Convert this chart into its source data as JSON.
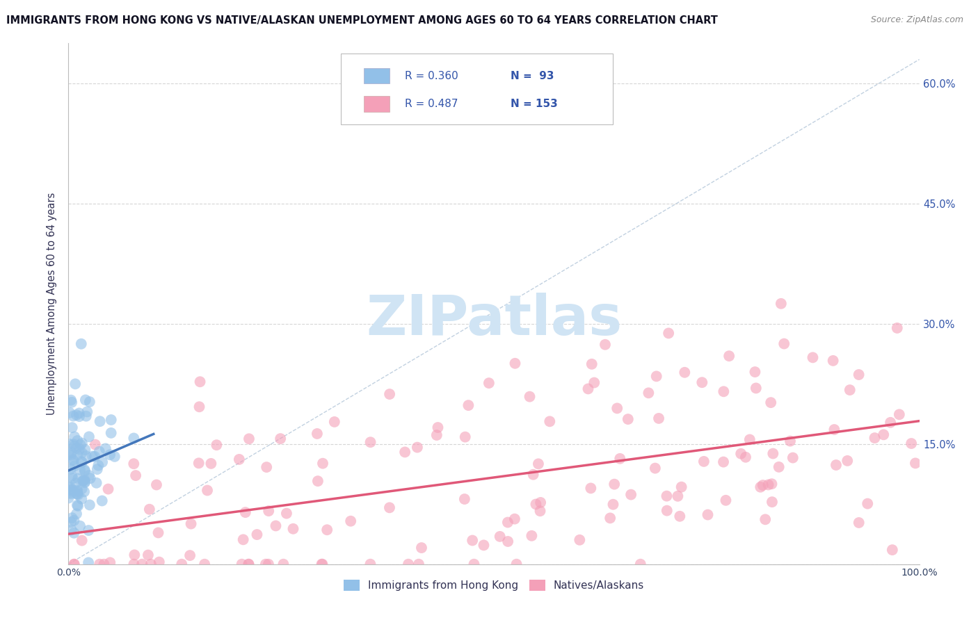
{
  "title": "IMMIGRANTS FROM HONG KONG VS NATIVE/ALASKAN UNEMPLOYMENT AMONG AGES 60 TO 64 YEARS CORRELATION CHART",
  "source_text": "Source: ZipAtlas.com",
  "ylabel": "Unemployment Among Ages 60 to 64 years",
  "xlim": [
    0,
    100
  ],
  "ylim": [
    0,
    65
  ],
  "ytick_positions": [
    0,
    15,
    30,
    45,
    60
  ],
  "ytick_labels": [
    "",
    "15.0%",
    "30.0%",
    "45.0%",
    "60.0%"
  ],
  "legend_label1": "Immigrants from Hong Kong",
  "legend_label2": "Natives/Alaskans",
  "blue_color": "#92C0E8",
  "pink_color": "#F4A0B8",
  "blue_line_color": "#4477BB",
  "pink_line_color": "#E05878",
  "ref_line_color": "#BBCCDD",
  "watermark_color": "#D0E4F4",
  "title_color": "#111122",
  "axis_label_color": "#333355",
  "right_tick_color": "#3355AA",
  "background_color": "#FFFFFF",
  "grid_color": "#CCCCCC",
  "n_blue": 93,
  "n_pink": 153,
  "r_blue": 0.36,
  "r_pink": 0.487
}
